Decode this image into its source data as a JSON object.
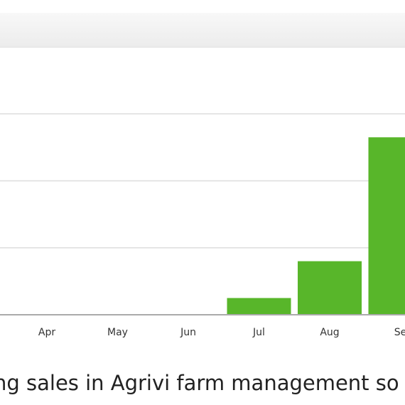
{
  "chart_data": {
    "type": "bar",
    "categories": [
      "Apr",
      "May",
      "Jun",
      "Jul",
      "Aug",
      "Se"
    ],
    "values": [
      0,
      0,
      0,
      5,
      16,
      53
    ],
    "ylim": [
      0,
      80
    ],
    "grid": true,
    "colors": {
      "bar": "#58b62a",
      "grid": "#dddddd",
      "axis": "#aaaaaa"
    }
  },
  "caption": "ng sales in Agrivi farm management so"
}
